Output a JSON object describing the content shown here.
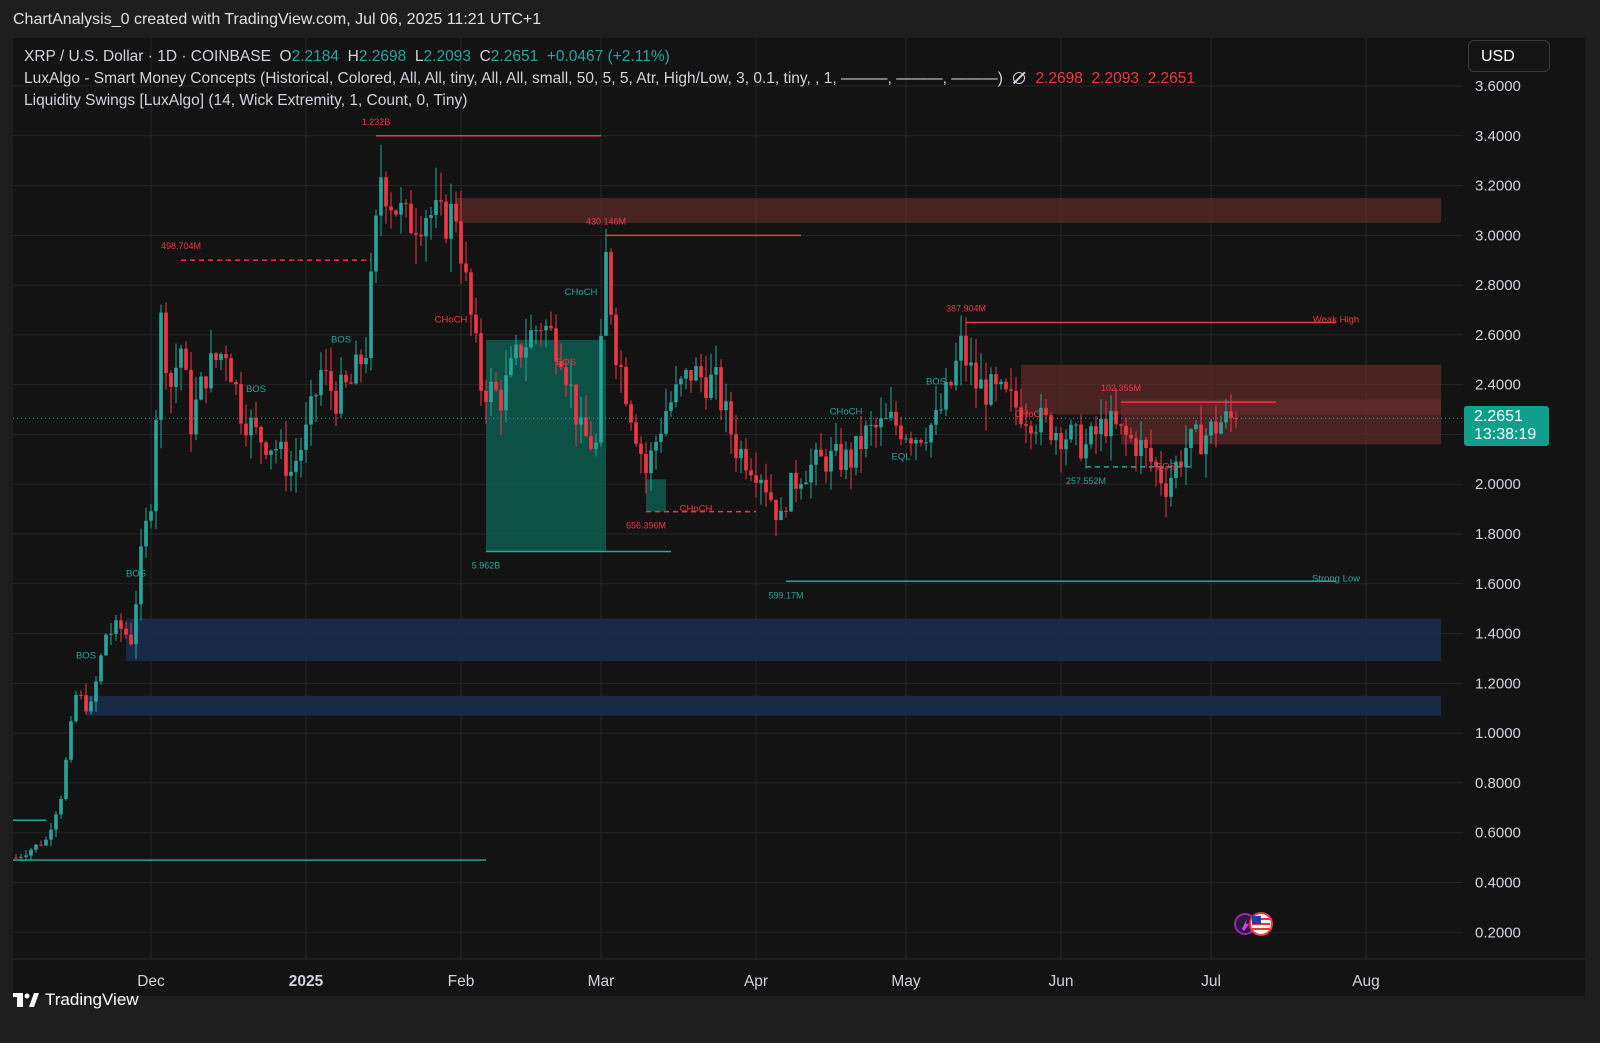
{
  "header": {
    "title": "ChartAnalysis_0 created with TradingView.com, Jul 06, 2025 11:21 UTC+1"
  },
  "legend": {
    "symbol": "XRP / U.S. Dollar · 1D · COINBASE",
    "o_label": "O",
    "o_value": "2.2184",
    "h_label": "H",
    "h_value": "2.2698",
    "l_label": "L",
    "l_value": "2.2093",
    "c_label": "C",
    "c_value": "2.2651",
    "change": "+0.0467 (+2.11%)",
    "indicator1": "LuxAlgo - Smart Money Concepts (Historical, Colored, All, All, tiny, All, All, small, 50, 5, 5, Atr, High/Low, 3, 0.1, tiny, , 1, ———, ———, ———)",
    "indicator1_icon": "hidden-eye-icon",
    "indicator1_values": [
      "2.2698",
      "2.2093",
      "2.2651"
    ],
    "indicator2": "Liquidity Swings [LuxAlgo] (14, Wick Extremity, 1, Count, 0, Tiny)"
  },
  "currency_button": "USD",
  "price_badge": {
    "price": "2.2651",
    "countdown": "13:38:19"
  },
  "brand": "TradingView",
  "colors": {
    "up": "#26a69a",
    "down": "#f23645",
    "ob_bear": "#6b2b2b",
    "ob_bull": "#0d5c50",
    "fvg_blue": "#1a2c4e",
    "badge": "#0fa08d"
  },
  "chart_data": {
    "type": "candlestick",
    "timeframe": "1D",
    "x_axis_labels": [
      "Dec",
      "2025",
      "Feb",
      "Mar",
      "Apr",
      "May",
      "Jun",
      "Jul",
      "Aug"
    ],
    "y_axis_labels": [
      "3.6000",
      "3.4000",
      "3.2000",
      "3.0000",
      "2.8000",
      "2.6000",
      "2.4000",
      "2.2000",
      "2.0000",
      "1.8000",
      "1.6000",
      "1.4000",
      "1.2000",
      "1.0000",
      "0.8000",
      "0.6000",
      "0.4000",
      "0.2000"
    ],
    "ylim": [
      0.1,
      3.75
    ],
    "grid": true,
    "current_price": 2.2651,
    "path_points": [
      [
        "2024-11-04",
        0.5
      ],
      [
        "2024-11-10",
        0.57
      ],
      [
        "2024-11-13",
        0.75
      ],
      [
        "2024-11-16",
        1.15
      ],
      [
        "2024-11-19",
        1.1
      ],
      [
        "2024-11-22",
        1.4
      ],
      [
        "2024-11-25",
        1.42
      ],
      [
        "2024-11-27",
        1.38
      ],
      [
        "2024-11-29",
        1.7
      ],
      [
        "2024-12-01",
        1.95
      ],
      [
        "2024-12-03",
        2.65
      ],
      [
        "2024-12-05",
        2.4
      ],
      [
        "2024-12-07",
        2.55
      ],
      [
        "2024-12-09",
        2.25
      ],
      [
        "2024-12-12",
        2.45
      ],
      [
        "2024-12-16",
        2.55
      ],
      [
        "2024-12-19",
        2.3
      ],
      [
        "2024-12-22",
        2.2
      ],
      [
        "2024-12-26",
        2.15
      ],
      [
        "2024-12-29",
        2.05
      ],
      [
        "2025-01-01",
        2.2
      ],
      [
        "2025-01-04",
        2.45
      ],
      [
        "2025-01-07",
        2.35
      ],
      [
        "2025-01-10",
        2.4
      ],
      [
        "2025-01-13",
        2.55
      ],
      [
        "2025-01-16",
        3.25
      ],
      [
        "2025-01-18",
        3.15
      ],
      [
        "2025-01-21",
        3.05
      ],
      [
        "2025-01-25",
        3.1
      ],
      [
        "2025-01-28",
        3.05
      ],
      [
        "2025-01-31",
        3.1
      ],
      [
        "2025-02-02",
        2.8
      ],
      [
        "2025-02-05",
        2.4
      ],
      [
        "2025-02-09",
        2.35
      ],
      [
        "2025-02-13",
        2.55
      ],
      [
        "2025-02-17",
        2.65
      ],
      [
        "2025-02-21",
        2.55
      ],
      [
        "2025-02-25",
        2.2
      ],
      [
        "2025-02-28",
        2.15
      ],
      [
        "2025-03-02",
        2.9
      ],
      [
        "2025-03-04",
        2.55
      ],
      [
        "2025-03-07",
        2.3
      ],
      [
        "2025-03-10",
        2.05
      ],
      [
        "2025-03-14",
        2.3
      ],
      [
        "2025-03-19",
        2.45
      ],
      [
        "2025-03-24",
        2.4
      ],
      [
        "2025-03-28",
        2.15
      ],
      [
        "2025-04-02",
        2.05
      ],
      [
        "2025-04-06",
        1.85
      ],
      [
        "2025-04-07",
        1.95
      ],
      [
        "2025-04-10",
        2.05
      ],
      [
        "2025-04-15",
        2.1
      ],
      [
        "2025-04-20",
        2.1
      ],
      [
        "2025-04-23",
        2.2
      ],
      [
        "2025-04-28",
        2.25
      ],
      [
        "2025-05-03",
        2.2
      ],
      [
        "2025-05-07",
        2.25
      ],
      [
        "2025-05-10",
        2.4
      ],
      [
        "2025-05-12",
        2.55
      ],
      [
        "2025-05-15",
        2.4
      ],
      [
        "2025-05-20",
        2.35
      ],
      [
        "2025-05-24",
        2.3
      ],
      [
        "2025-05-28",
        2.25
      ],
      [
        "2025-06-02",
        2.2
      ],
      [
        "2025-06-06",
        2.15
      ],
      [
        "2025-06-10",
        2.25
      ],
      [
        "2025-06-13",
        2.2
      ],
      [
        "2025-06-17",
        2.15
      ],
      [
        "2025-06-22",
        2.0
      ],
      [
        "2025-06-26",
        2.15
      ],
      [
        "2025-06-30",
        2.2
      ],
      [
        "2025-07-03",
        2.25
      ],
      [
        "2025-07-06",
        2.2651
      ]
    ],
    "zones": [
      {
        "kind": "bearish-ob",
        "from": "2025-01-31",
        "to": "2025-08-16",
        "top": 3.15,
        "bottom": 3.05
      },
      {
        "kind": "bearish-ob",
        "from": "2025-05-24",
        "to": "2025-08-16",
        "top": 2.48,
        "bottom": 2.28
      },
      {
        "kind": "bearish-ob",
        "from": "2025-06-13",
        "to": "2025-08-16",
        "top": 2.34,
        "bottom": 2.16
      },
      {
        "kind": "bullish-ob",
        "from": "2025-02-06",
        "to": "2025-03-02",
        "top": 2.58,
        "bottom": 1.73
      },
      {
        "kind": "bullish-ob",
        "from": "2025-03-10",
        "to": "2025-03-14",
        "top": 2.02,
        "bottom": 1.89
      },
      {
        "kind": "blue-fvg",
        "from": "2024-11-26",
        "to": "2025-08-16",
        "top": 1.46,
        "bottom": 1.29
      },
      {
        "kind": "blue-fvg",
        "from": "2024-11-18",
        "to": "2025-08-16",
        "top": 1.15,
        "bottom": 1.07
      }
    ],
    "levels": [
      {
        "price": 3.4,
        "from": "2025-01-15",
        "to": "2025-03-01",
        "color": "down",
        "label": "1.232B",
        "label_at": "2025-01-15",
        "below": false
      },
      {
        "price": 2.9,
        "from": "2024-12-07",
        "to": "2025-01-14",
        "color": "down",
        "dashed": true,
        "label": "498.704M",
        "label_at": "2024-12-07",
        "below": false
      },
      {
        "price": 3.0,
        "from": "2025-03-02",
        "to": "2025-04-10",
        "color": "down",
        "label": "430.146M",
        "label_at": "2025-03-02",
        "below": false
      },
      {
        "price": 2.65,
        "from": "2025-05-13",
        "to": "2025-07-26",
        "color": "down",
        "label": "387.904M",
        "label_at": "2025-05-13",
        "below": false
      },
      {
        "price": 2.33,
        "from": "2025-06-13",
        "to": "2025-07-14",
        "color": "down",
        "label": "102.355M",
        "label_at": "2025-06-13",
        "below": false
      },
      {
        "price": 1.73,
        "from": "2025-02-06",
        "to": "2025-03-15",
        "color": "up",
        "label": "5.962B",
        "label_at": "2025-02-06",
        "below": true
      },
      {
        "price": 1.89,
        "from": "2025-03-10",
        "to": "2025-04-01",
        "color": "down",
        "dashed": true,
        "label": "656.396M",
        "label_at": "2025-03-10",
        "below": true
      },
      {
        "price": 1.61,
        "from": "2025-04-07",
        "to": "2025-07-26",
        "color": "up",
        "label": "599.17M",
        "label_at": "2025-04-07",
        "below": true
      },
      {
        "price": 2.07,
        "from": "2025-06-06",
        "to": "2025-06-27",
        "color": "up",
        "dashed": true,
        "label": "257.552M",
        "label_at": "2025-06-06",
        "below": true
      },
      {
        "price": 0.49,
        "from": "2024-11-01",
        "to": "2025-02-06",
        "color": "up"
      },
      {
        "price": 0.65,
        "from": "2024-11-01",
        "to": "2024-11-10",
        "color": "up"
      }
    ],
    "structure_labels": [
      {
        "text": "BOS",
        "date": "2024-11-18",
        "price": 1.3,
        "color": "up"
      },
      {
        "text": "BOS",
        "date": "2024-11-28",
        "price": 1.63,
        "color": "up"
      },
      {
        "text": "BOS",
        "date": "2024-12-22",
        "price": 2.37,
        "color": "up"
      },
      {
        "text": "BOS",
        "date": "2025-01-08",
        "price": 2.57,
        "color": "up"
      },
      {
        "text": "CHoCH",
        "date": "2025-01-30",
        "price": 2.65,
        "color": "down"
      },
      {
        "text": "CHoCH",
        "date": "2025-02-25",
        "price": 2.76,
        "color": "up"
      },
      {
        "text": "BOS",
        "date": "2025-02-22",
        "price": 2.48,
        "color": "down"
      },
      {
        "text": "CHoCH",
        "date": "2025-03-20",
        "price": 1.89,
        "color": "down"
      },
      {
        "text": "CHoCH",
        "date": "2025-04-19",
        "price": 2.28,
        "color": "up"
      },
      {
        "text": "EQL",
        "date": "2025-04-30",
        "price": 2.1,
        "color": "up"
      },
      {
        "text": "BOS",
        "date": "2025-05-07",
        "price": 2.4,
        "color": "up"
      },
      {
        "text": "CHoCH",
        "date": "2025-05-26",
        "price": 2.27,
        "color": "down"
      },
      {
        "text": "BOS",
        "date": "2025-06-22",
        "price": 2.06,
        "color": "down"
      },
      {
        "text": "Weak High",
        "date": "2025-07-26",
        "price": 2.65,
        "color": "down"
      },
      {
        "text": "Strong Low",
        "date": "2025-07-26",
        "price": 1.61,
        "color": "up"
      }
    ]
  }
}
